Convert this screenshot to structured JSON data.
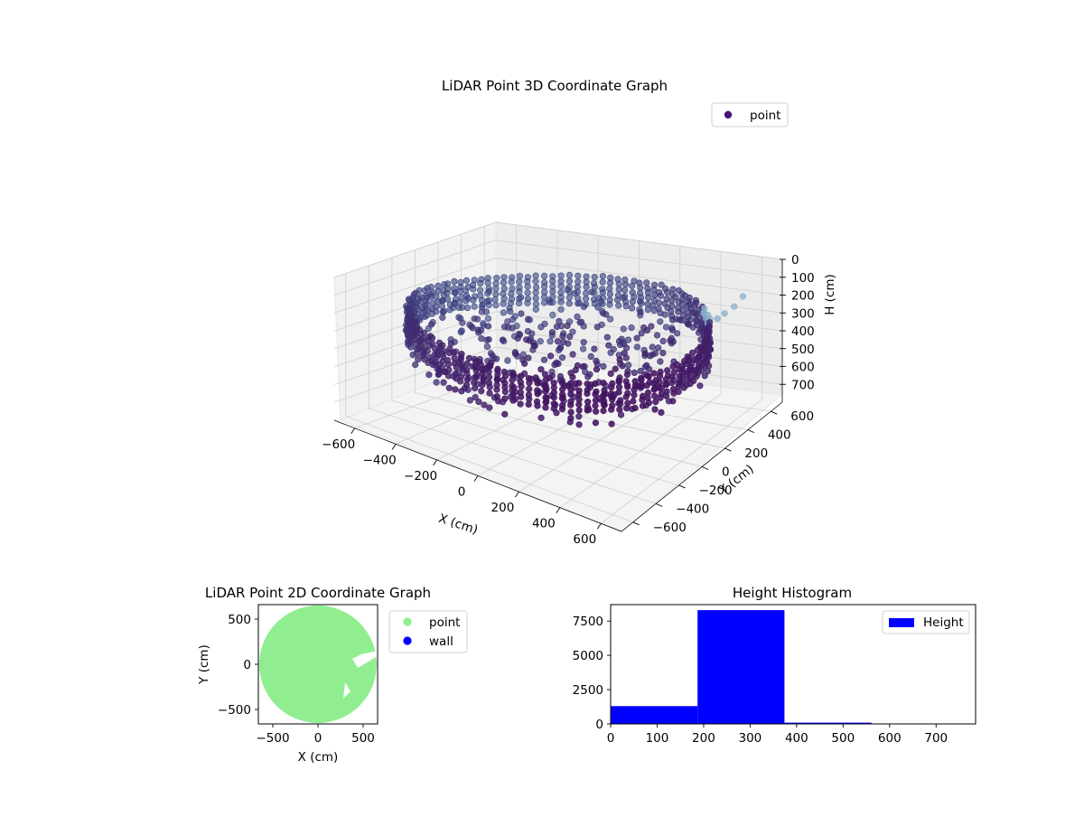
{
  "figure": {
    "background": "#ffffff"
  },
  "chart_data": [
    {
      "type": "scatter",
      "projection": "3d",
      "title": "LiDAR Point 3D Coordinate Graph",
      "xlabel": "X (cm)",
      "ylabel": "Y (cm)",
      "zlabel": "H (cm)",
      "xlim": [
        -700,
        700
      ],
      "ylim": [
        -700,
        700
      ],
      "zlim": [
        0,
        800
      ],
      "z_inverted": true,
      "xticks": [
        -600,
        -400,
        -200,
        0,
        200,
        400,
        600
      ],
      "yticks": [
        -600,
        -400,
        -200,
        0,
        200,
        400,
        600
      ],
      "zticks": [
        0,
        100,
        200,
        300,
        400,
        500,
        600,
        700
      ],
      "grid": true,
      "legend": {
        "placement": "upper-right",
        "entries": [
          "point"
        ]
      },
      "colors": {
        "point": "#46157a",
        "colormap_low": "#440154",
        "colormap_mid": "#3b528b",
        "colormap_high": "#87b0c9"
      },
      "series": [
        {
          "name": "point",
          "description_values": {
            "ring_radius_cm": 640,
            "ring_height_range_cm": [
              180,
              360
            ],
            "height_layers_cm": [
              200,
              230,
              260,
              290,
              320,
              350
            ],
            "interior_height_range_cm": [
              200,
              550
            ],
            "outlier_points": [
              {
                "x": 620,
                "y": 500,
                "h": 120
              },
              {
                "x": 600,
                "y": 460,
                "h": 160
              },
              {
                "x": 570,
                "y": 430,
                "h": 190
              },
              {
                "x": 540,
                "y": 420,
                "h": 220
              }
            ]
          }
        }
      ]
    },
    {
      "type": "scatter",
      "title": "LiDAR Point 2D Coordinate Graph",
      "xlabel": "X (cm)",
      "ylabel": "Y (cm)",
      "xlim": [
        -660,
        660
      ],
      "ylim": [
        -660,
        660
      ],
      "xticks": [
        -500,
        0,
        500
      ],
      "yticks": [
        -500,
        0,
        500
      ],
      "legend": {
        "placement": "outside-right",
        "entries": [
          "point",
          "wall"
        ]
      },
      "colors": {
        "point": "#90ee90",
        "wall": "#0000ff"
      },
      "series": [
        {
          "name": "point",
          "region": "disc",
          "radius_cm": 650
        },
        {
          "name": "wall",
          "values": []
        }
      ]
    },
    {
      "type": "bar",
      "subtype": "histogram",
      "title": "Height Histogram",
      "xlabel": "",
      "ylabel": "",
      "xlim": [
        0,
        785
      ],
      "ylim": [
        0,
        8700
      ],
      "xticks": [
        0,
        100,
        200,
        300,
        400,
        500,
        600,
        700
      ],
      "yticks": [
        0,
        2500,
        5000,
        7500
      ],
      "legend": {
        "placement": "upper-right",
        "entries": [
          "Height"
        ]
      },
      "colors": {
        "bar": "#0000ff"
      },
      "series": [
        {
          "name": "Height",
          "bins": [
            {
              "from": 0,
              "to": 187,
              "count": 1300
            },
            {
              "from": 187,
              "to": 374,
              "count": 8300
            },
            {
              "from": 374,
              "to": 561,
              "count": 90
            },
            {
              "from": 561,
              "to": 748,
              "count": 15
            }
          ]
        }
      ]
    }
  ]
}
